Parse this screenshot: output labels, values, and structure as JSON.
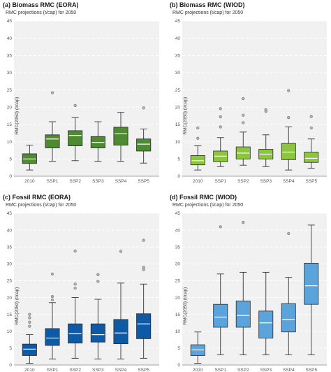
{
  "chart_data": [
    {
      "type": "boxplot",
      "title": "(a) Biomass RMC (EORA)",
      "subtitle": "RMC projections (t/cap) for 2050",
      "ylabel": "RMC(2050) (t/cap)",
      "ylim": [
        0,
        45
      ],
      "yticks": [
        0,
        5,
        10,
        15,
        20,
        25,
        30,
        35,
        40,
        45
      ],
      "grid": true,
      "box_color": "#4e8a31",
      "median_color": "#ffffff",
      "categories": [
        "2010",
        "SSP1",
        "SSP2",
        "SSP3",
        "SSP4",
        "SSP5"
      ],
      "boxes": [
        {
          "category": "2010",
          "whisker_low": 1.8,
          "q1": 3.7,
          "median": 5.0,
          "q3": 6.5,
          "whisker_high": 9.0,
          "outliers": []
        },
        {
          "category": "SSP1",
          "whisker_low": 4.3,
          "q1": 8.2,
          "median": 10.8,
          "q3": 12.0,
          "whisker_high": 15.8,
          "outliers": [
            24.2
          ]
        },
        {
          "category": "SSP2",
          "whisker_low": 4.5,
          "q1": 8.8,
          "median": 11.8,
          "q3": 13.2,
          "whisker_high": 17.0,
          "outliers": [
            20.5
          ]
        },
        {
          "category": "SSP3",
          "whisker_low": 4.3,
          "q1": 8.2,
          "median": 9.8,
          "q3": 11.5,
          "whisker_high": 15.8,
          "outliers": []
        },
        {
          "category": "SSP4",
          "whisker_low": 4.3,
          "q1": 9.0,
          "median": 12.3,
          "q3": 14.2,
          "whisker_high": 18.5,
          "outliers": []
        },
        {
          "category": "SSP5",
          "whisker_low": 3.8,
          "q1": 7.3,
          "median": 9.3,
          "q3": 10.8,
          "whisker_high": 13.7,
          "outliers": [
            19.8
          ]
        }
      ]
    },
    {
      "type": "boxplot",
      "title": "(b) Biomass RMC (WIOD)",
      "subtitle": "RMC projections (t/cap) for 2050",
      "ylabel": "RMC(2050) (t/cap)",
      "ylim": [
        0,
        45
      ],
      "yticks": [
        0,
        5,
        10,
        15,
        20,
        25,
        30,
        35,
        40,
        45
      ],
      "grid": true,
      "box_color": "#8cc63f",
      "median_color": "#ffffff",
      "categories": [
        "2010",
        "SSP1",
        "SSP2",
        "SSP3",
        "SSP4",
        "SSP5"
      ],
      "boxes": [
        {
          "category": "2010",
          "whisker_low": 1.8,
          "q1": 3.3,
          "median": 4.5,
          "q3": 6.0,
          "whisker_high": 8.8,
          "outliers": [
            11.0,
            14.0
          ]
        },
        {
          "category": "SSP1",
          "whisker_low": 2.8,
          "q1": 4.2,
          "median": 5.8,
          "q3": 7.3,
          "whisker_high": 11.2,
          "outliers": [
            14.3,
            17.2,
            19.6
          ]
        },
        {
          "category": "SSP2",
          "whisker_low": 3.2,
          "q1": 5.0,
          "median": 6.7,
          "q3": 8.5,
          "whisker_high": 12.8,
          "outliers": [
            15.5,
            17.7,
            22.5
          ]
        },
        {
          "category": "SSP3",
          "whisker_low": 2.8,
          "q1": 5.0,
          "median": 6.4,
          "q3": 7.8,
          "whisker_high": 12.0,
          "outliers": [
            18.8,
            19.3
          ]
        },
        {
          "category": "SSP4",
          "whisker_low": 1.8,
          "q1": 4.8,
          "median": 7.0,
          "q3": 9.5,
          "whisker_high": 14.3,
          "outliers": [
            17.0,
            24.8
          ]
        },
        {
          "category": "SSP5",
          "whisker_low": 2.3,
          "q1": 4.0,
          "median": 5.2,
          "q3": 7.0,
          "whisker_high": 10.8,
          "outliers": [
            14.0,
            17.3
          ]
        }
      ]
    },
    {
      "type": "boxplot",
      "title": "(c) Fossil RMC (EORA)",
      "subtitle": "RMC projections (t/cap) for 2050",
      "ylabel": "RMC(2050) (t/cap)",
      "ylim": [
        0,
        45
      ],
      "yticks": [
        0,
        5,
        10,
        15,
        20,
        25,
        30,
        35,
        40,
        45
      ],
      "grid": true,
      "box_color": "#0e5aa7",
      "median_color": "#ffffff",
      "categories": [
        "2010",
        "SSP1",
        "SSP2",
        "SSP3",
        "SSP4",
        "SSP5"
      ],
      "boxes": [
        {
          "category": "2010",
          "whisker_low": 0.5,
          "q1": 2.8,
          "median": 4.7,
          "q3": 6.2,
          "whisker_high": 9.0,
          "outliers": [
            11.5,
            12.7,
            14.0,
            15.0
          ]
        },
        {
          "category": "SSP1",
          "whisker_low": 1.8,
          "q1": 5.8,
          "median": 8.0,
          "q3": 10.8,
          "whisker_high": 18.5,
          "outliers": [
            19.3,
            20.3,
            27.0
          ]
        },
        {
          "category": "SSP2",
          "whisker_low": 2.0,
          "q1": 6.5,
          "median": 9.3,
          "q3": 12.2,
          "whisker_high": 20.0,
          "outliers": [
            22.8,
            24.0,
            33.8
          ]
        },
        {
          "category": "SSP3",
          "whisker_low": 1.8,
          "q1": 6.8,
          "median": 9.0,
          "q3": 12.2,
          "whisker_high": 19.5,
          "outliers": [
            24.8,
            26.8
          ]
        },
        {
          "category": "SSP4",
          "whisker_low": 1.8,
          "q1": 6.3,
          "median": 9.5,
          "q3": 13.5,
          "whisker_high": 24.3,
          "outliers": [
            33.7
          ]
        },
        {
          "category": "SSP5",
          "whisker_low": 2.0,
          "q1": 7.8,
          "median": 12.2,
          "q3": 15.2,
          "whisker_high": 24.0,
          "outliers": [
            28.3,
            29.0,
            37.0
          ]
        }
      ]
    },
    {
      "type": "boxplot",
      "title": "(d) Fossil RMC (WIOD)",
      "subtitle": "RMC projections (t/cap) for 2050",
      "ylabel": "RMC(2050) (t/cap)",
      "ylim": [
        0,
        45
      ],
      "yticks": [
        0,
        5,
        10,
        15,
        20,
        25,
        30,
        35,
        40,
        45
      ],
      "grid": true,
      "box_color": "#5ba3db",
      "median_color": "#ffffff",
      "categories": [
        "2010",
        "SSP1",
        "SSP2",
        "SSP3",
        "SSP4",
        "SSP5"
      ],
      "boxes": [
        {
          "category": "2010",
          "whisker_low": 0.5,
          "q1": 2.8,
          "median": 4.5,
          "q3": 6.0,
          "whisker_high": 9.8,
          "outliers": []
        },
        {
          "category": "SSP1",
          "whisker_low": 3.0,
          "q1": 11.2,
          "median": 14.2,
          "q3": 18.0,
          "whisker_high": 27.0,
          "outliers": [
            41.0
          ]
        },
        {
          "category": "SSP2",
          "whisker_low": 3.0,
          "q1": 11.2,
          "median": 14.7,
          "q3": 19.0,
          "whisker_high": 27.5,
          "outliers": [
            42.3
          ]
        },
        {
          "category": "SSP3",
          "whisker_low": 3.0,
          "q1": 8.0,
          "median": 12.5,
          "q3": 16.0,
          "whisker_high": 27.5,
          "outliers": []
        },
        {
          "category": "SSP4",
          "whisker_low": 3.0,
          "q1": 9.8,
          "median": 13.5,
          "q3": 18.2,
          "whisker_high": 26.0,
          "outliers": [
            39.0
          ]
        },
        {
          "category": "SSP5",
          "whisker_low": 3.0,
          "q1": 18.0,
          "median": 23.5,
          "q3": 30.2,
          "whisker_high": 41.5,
          "outliers": []
        }
      ]
    }
  ]
}
